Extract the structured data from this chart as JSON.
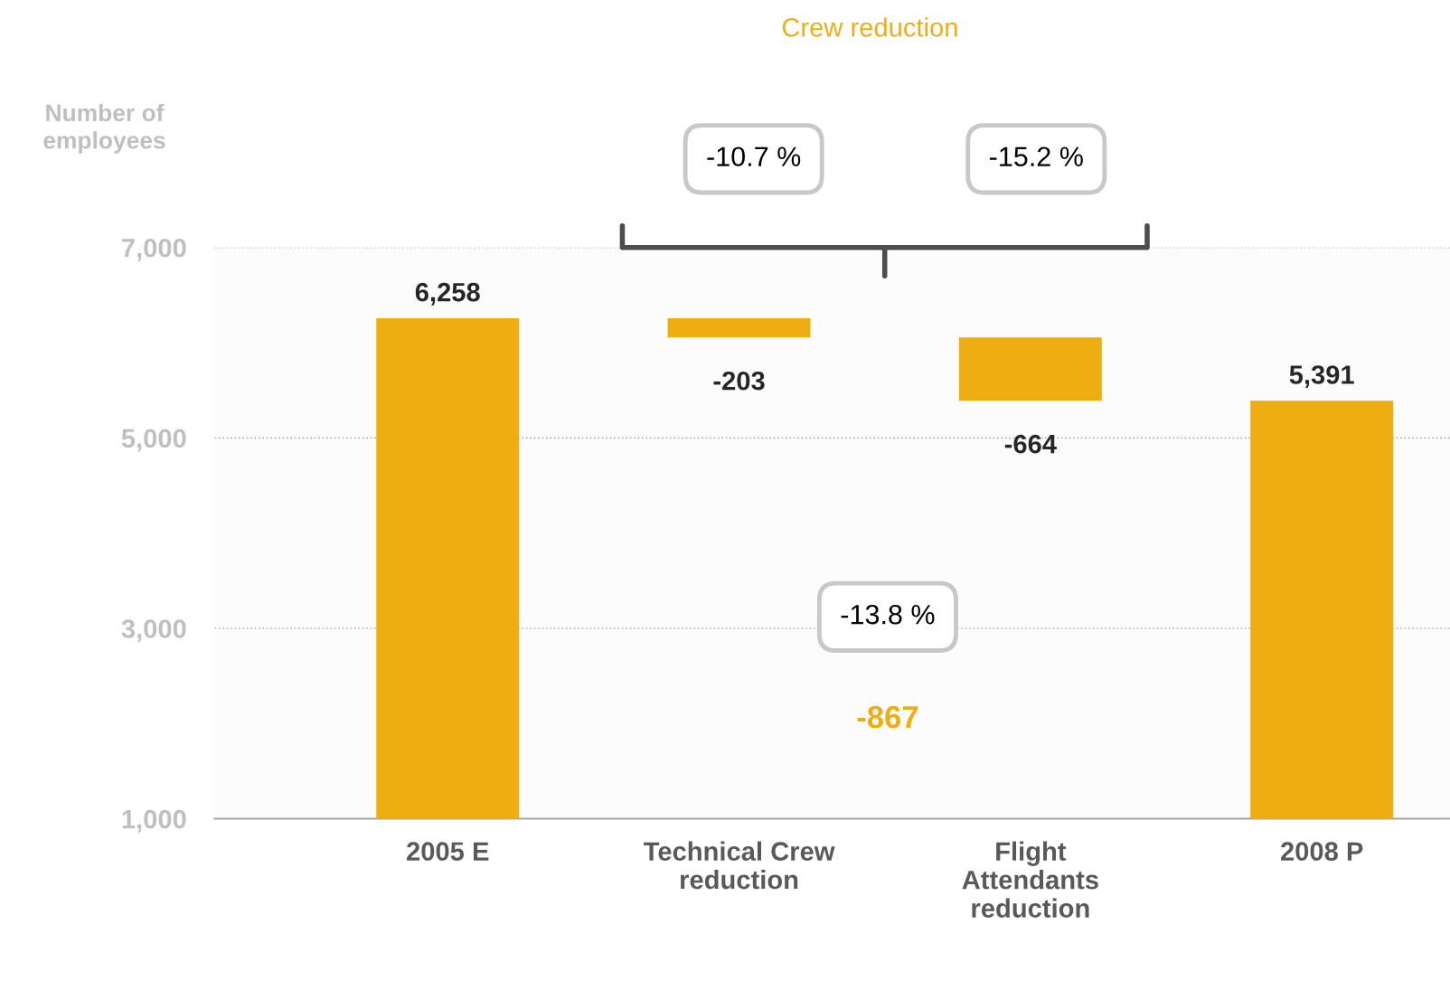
{
  "chart_data": {
    "type": "bar",
    "title": "Crew reduction",
    "ylabel": "Number of\nemployees",
    "categories": [
      "2005 E",
      "Technical Crew\nreduction",
      "Flight\nAttendants\nreduction",
      "2008 P"
    ],
    "values": [
      6258,
      -203,
      -664,
      5391
    ],
    "base": [
      null,
      6258,
      6055,
      null
    ],
    "color": "#eeae12",
    "value_labels": [
      "6,258",
      "-203",
      "-664",
      "5,391"
    ],
    "ylim": [
      1000,
      7000
    ],
    "yticks": [
      {
        "value": 1000,
        "label": "1,000"
      },
      {
        "value": 3000,
        "label": "3,000"
      },
      {
        "value": 5000,
        "label": "5,000"
      },
      {
        "value": 7000,
        "label": "7,000"
      }
    ],
    "grid": "y",
    "annotations": [
      "-10.7 %",
      "-15.2 %",
      "-13.8 %",
      "-867"
    ]
  }
}
